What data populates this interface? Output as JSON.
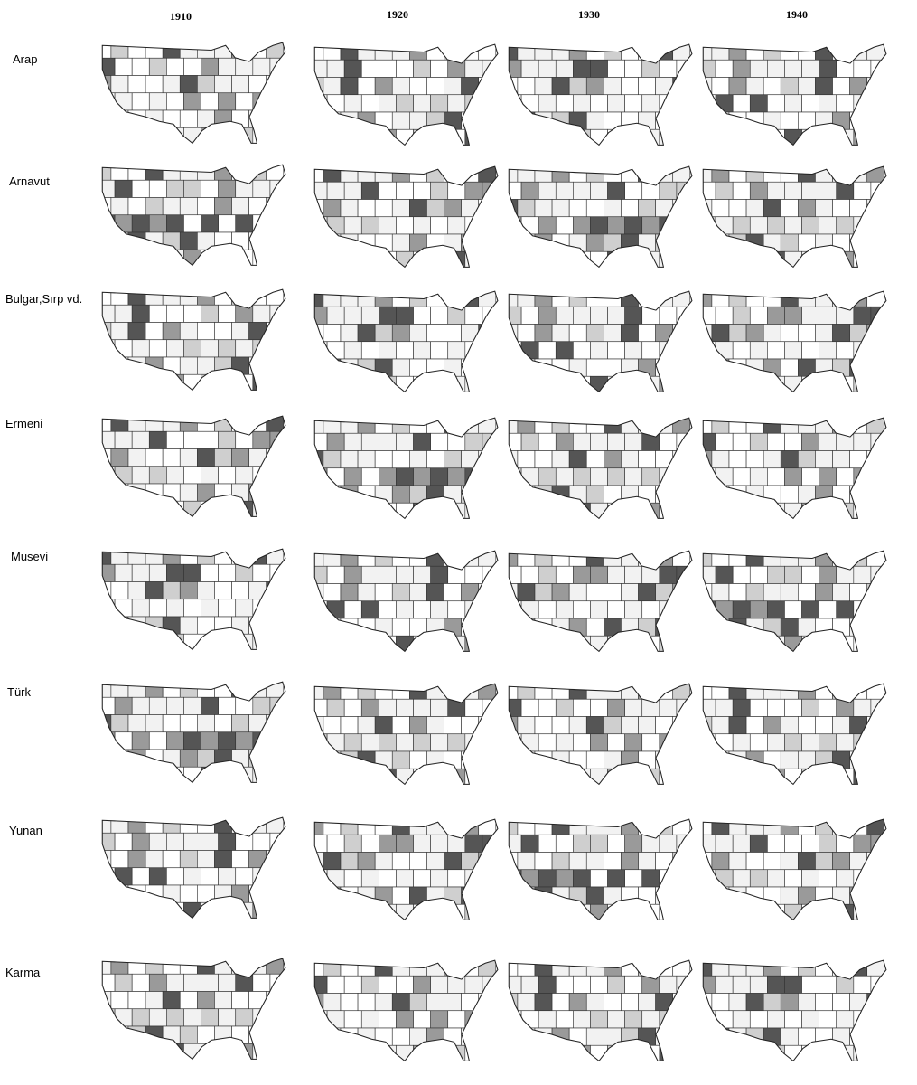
{
  "columns": [
    "1910",
    "1920",
    "1930",
    "1940"
  ],
  "rows": [
    "Arap",
    "Arnavut",
    "Bulgar,Sırp vd.",
    "Ermeni",
    "Musevi",
    "Türk",
    "Yunan",
    "Karma"
  ]
}
